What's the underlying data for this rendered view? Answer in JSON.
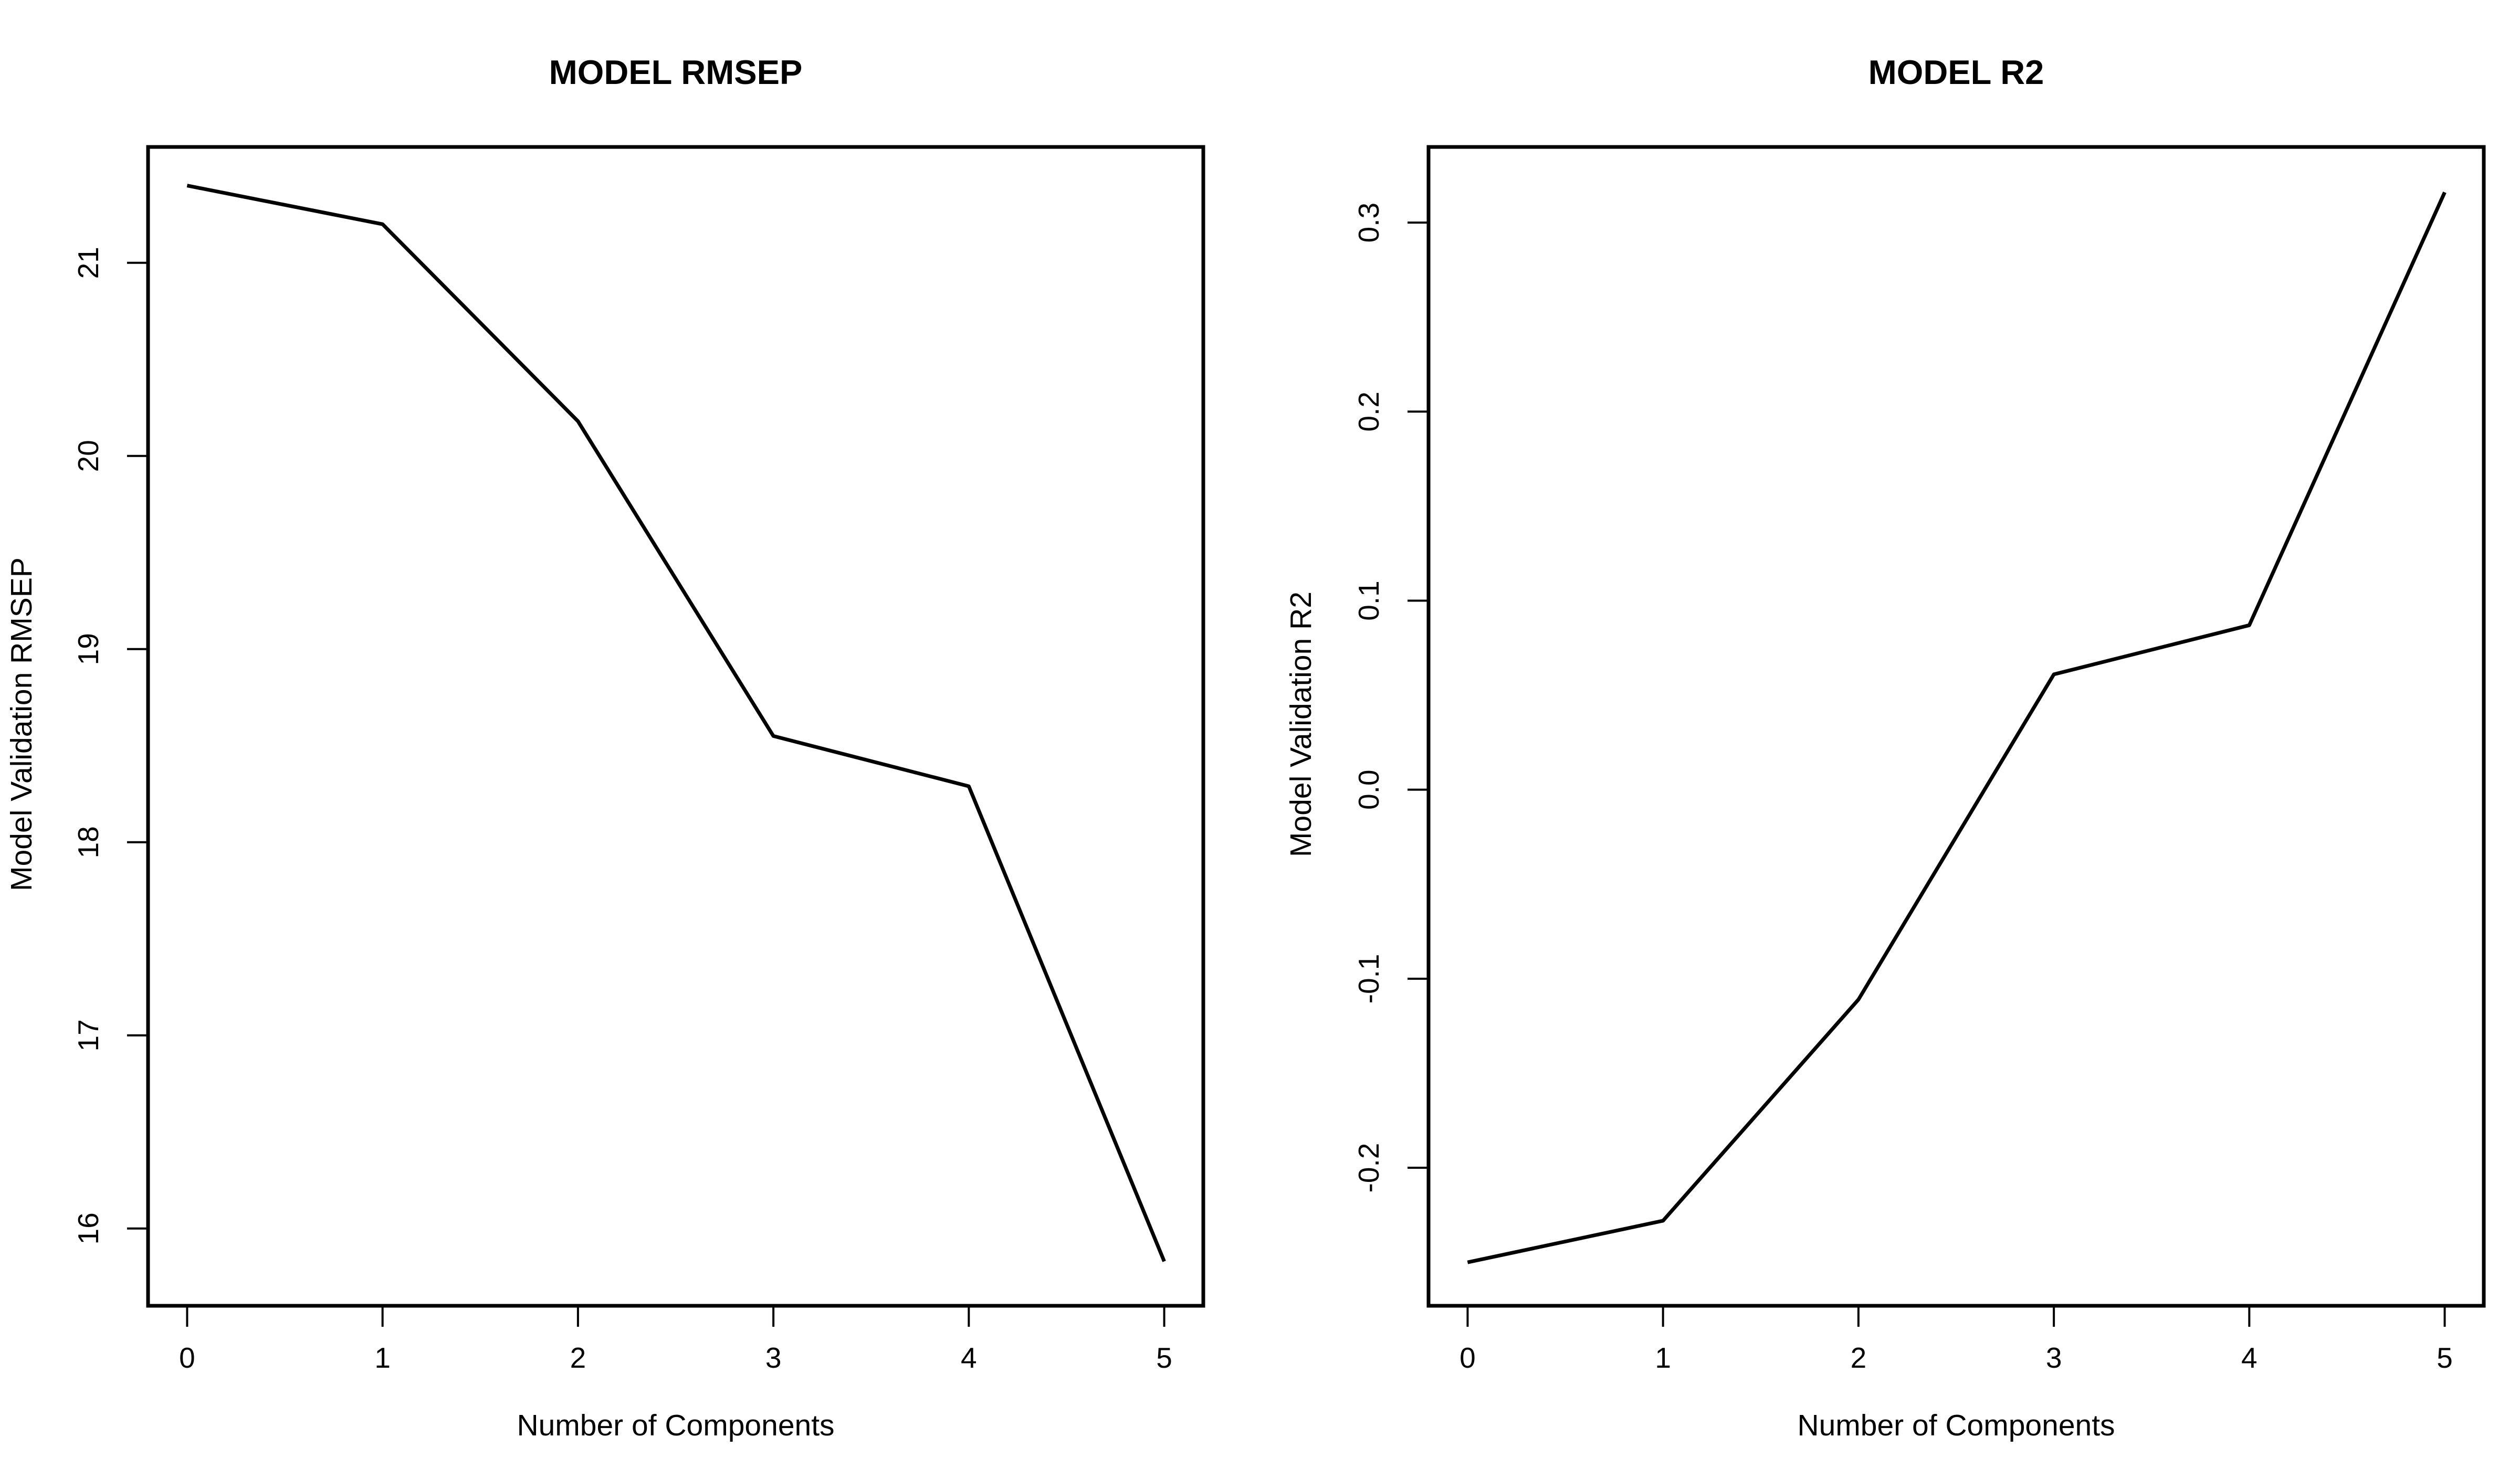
{
  "chart_data": [
    {
      "type": "line",
      "title": "MODEL RMSEP",
      "xlabel": "Number of Components",
      "ylabel": "Model Validation RMSEP",
      "x": [
        0,
        1,
        2,
        3,
        4,
        5
      ],
      "values": [
        21.4,
        21.2,
        20.18,
        18.55,
        18.29,
        15.83
      ],
      "xticks": [
        "0",
        "1",
        "2",
        "3",
        "4",
        "5"
      ],
      "yticks": [
        "16",
        "17",
        "18",
        "19",
        "20",
        "21"
      ],
      "ytick_values": [
        16,
        17,
        18,
        19,
        20,
        21
      ],
      "xlim": [
        -0.2,
        5.2
      ],
      "ylim": [
        15.6,
        21.6
      ],
      "line_color": "#000000",
      "grid": false
    },
    {
      "type": "line",
      "title": "MODEL R2",
      "xlabel": "Number of Components",
      "ylabel": "Model Validation R2",
      "x": [
        0,
        1,
        2,
        3,
        4,
        5
      ],
      "values": [
        -0.25,
        -0.228,
        -0.111,
        0.061,
        0.087,
        0.316
      ],
      "xticks": [
        "0",
        "1",
        "2",
        "3",
        "4",
        "5"
      ],
      "yticks": [
        "-0.2",
        "-0.1",
        "0.0",
        "0.1",
        "0.2",
        "0.3"
      ],
      "ytick_values": [
        -0.2,
        -0.1,
        0.0,
        0.1,
        0.2,
        0.3
      ],
      "xlim": [
        -0.2,
        5.2
      ],
      "ylim": [
        -0.273,
        0.34
      ],
      "line_color": "#000000",
      "grid": false
    }
  ]
}
